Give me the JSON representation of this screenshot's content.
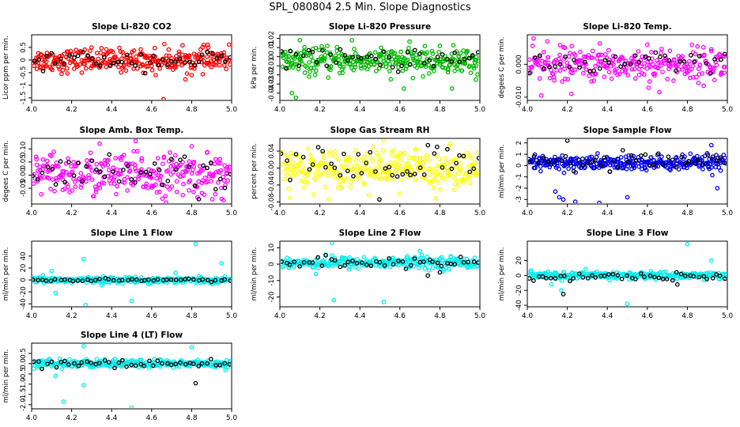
{
  "figure": {
    "title": "SPL_080804  2.5 Min. Slope Diagnostics"
  },
  "chart_data": [
    {
      "type": "scatter",
      "title": "Slope Li-820 CO2",
      "ylabel": "Licor ppm per min.",
      "xlim": [
        4.0,
        5.0
      ],
      "ylim": [
        -1.6,
        1.0
      ],
      "xticks": [
        4.0,
        4.2,
        4.4,
        4.6,
        4.8,
        5.0
      ],
      "xtick_labels": [
        "4.0",
        "4.2",
        "4.4",
        "4.6",
        "4.8",
        "5.0"
      ],
      "yticks": [
        -1.5,
        -1.0,
        -0.5,
        0.0,
        0.5
      ],
      "ytick_labels": [
        "-1.5",
        "-1",
        "-0.5",
        "0",
        "0.5"
      ],
      "series": [
        {
          "color": "#ff0000",
          "n": 300,
          "center": 0.0,
          "spread": 0.22,
          "outliers": [
            [
              4.66,
              -1.55
            ],
            [
              4.62,
              -0.6
            ],
            [
              4.3,
              0.5
            ],
            [
              4.15,
              -0.55
            ],
            [
              4.8,
              -0.6
            ],
            [
              4.88,
              0.6
            ]
          ]
        },
        {
          "color": "#000000",
          "n": 45,
          "center": 0.0,
          "spread": 0.18,
          "outliers": []
        }
      ]
    },
    {
      "type": "scatter",
      "title": "Slope Li-820 Pressure",
      "ylabel": "kPa per min.",
      "xlim": [
        4.0,
        5.0
      ],
      "ylim": [
        -0.048,
        0.024
      ],
      "xticks": [
        4.0,
        4.2,
        4.4,
        4.6,
        4.8,
        5.0
      ],
      "xtick_labels": [
        "4.0",
        "4.2",
        "4.4",
        "4.6",
        "4.8",
        "5.0"
      ],
      "yticks": [
        -0.04,
        -0.03,
        -0.02,
        -0.01,
        0.0,
        0.01,
        0.02
      ],
      "ytick_labels": [
        "-0.04",
        "-0.03",
        "-0.02",
        "-0.01",
        "0",
        "0.01",
        "0.02"
      ],
      "series": [
        {
          "color": "#00bb00",
          "n": 320,
          "center": -0.005,
          "spread": 0.007,
          "outliers": [
            [
              4.08,
              -0.045
            ],
            [
              4.06,
              -0.04
            ],
            [
              4.62,
              -0.035
            ],
            [
              4.86,
              -0.035
            ],
            [
              4.98,
              -0.025
            ],
            [
              4.36,
              0.018
            ],
            [
              4.1,
              0.018
            ]
          ]
        },
        {
          "color": "#000000",
          "n": 45,
          "center": -0.002,
          "spread": 0.006,
          "outliers": []
        }
      ]
    },
    {
      "type": "scatter",
      "title": "Slope Li-820 Temp.",
      "ylabel": "degees C per min.",
      "xlim": [
        4.0,
        5.0
      ],
      "ylim": [
        -0.011,
        0.009
      ],
      "xticks": [
        4.0,
        4.2,
        4.4,
        4.6,
        4.8,
        5.0
      ],
      "xtick_labels": [
        "4.0",
        "4.2",
        "4.4",
        "4.6",
        "4.8",
        "5.0"
      ],
      "yticks": [
        -0.01,
        0.0
      ],
      "ytick_labels": [
        "-0.010",
        "0.000"
      ],
      "series": [
        {
          "color": "#ff00ff",
          "n": 280,
          "center": 0.0,
          "spread": 0.0025,
          "outliers": [
            [
              4.07,
              -0.0095
            ],
            [
              4.22,
              -0.009
            ],
            [
              4.66,
              -0.0085
            ],
            [
              4.1,
              0.007
            ],
            [
              4.6,
              0.006
            ],
            [
              4.92,
              0.004
            ]
          ]
        },
        {
          "color": "#000000",
          "n": 40,
          "center": 0.0,
          "spread": 0.002,
          "outliers": []
        }
      ]
    },
    {
      "type": "scatter",
      "title": "Slope Amb. Box Temp.",
      "ylabel": "degees C per min.",
      "xlim": [
        4.0,
        5.0
      ],
      "ylim": [
        -0.11,
        0.14
      ],
      "xticks": [
        4.0,
        4.2,
        4.4,
        4.6,
        4.8,
        5.0
      ],
      "xtick_labels": [
        "4.0",
        "4.2",
        "4.4",
        "4.6",
        "4.8",
        "5.0"
      ],
      "yticks": [
        -0.05,
        0.0,
        0.05,
        0.1
      ],
      "ytick_labels": [
        "-0.05",
        "0.00",
        "0.05",
        "0.10"
      ],
      "series": [
        {
          "color": "#ff00ff",
          "n": 300,
          "center": 0.0,
          "spread": 0.04,
          "outliers": [
            [
              4.52,
              0.13
            ],
            [
              4.34,
              0.12
            ],
            [
              4.8,
              0.11
            ],
            [
              4.95,
              -0.09
            ]
          ]
        },
        {
          "color": "#000000",
          "n": 45,
          "center": 0.0,
          "spread": 0.035,
          "outliers": []
        }
      ]
    },
    {
      "type": "scatter",
      "title": "Slope Gas Stream RH",
      "ylabel": "percent per min.",
      "xlim": [
        4.0,
        5.0
      ],
      "ylim": [
        -0.085,
        0.07
      ],
      "xticks": [
        4.0,
        4.2,
        4.4,
        4.6,
        4.8,
        5.0
      ],
      "xtick_labels": [
        "4.0",
        "4.2",
        "4.4",
        "4.6",
        "4.8",
        "5.0"
      ],
      "yticks": [
        -0.08,
        -0.04,
        0.0,
        0.04
      ],
      "ytick_labels": [
        "-0.08",
        "-0.04",
        "0.00",
        "0.04"
      ],
      "series": [
        {
          "color": "#ffff00",
          "n": 300,
          "center": 0.0,
          "spread": 0.022,
          "outliers": [
            [
              4.52,
              0.065
            ],
            [
              4.05,
              -0.07
            ],
            [
              4.78,
              -0.072
            ],
            [
              4.6,
              -0.06
            ]
          ]
        },
        {
          "color": "#000000",
          "n": 45,
          "center": 0.0,
          "spread": 0.03,
          "outliers": []
        }
      ]
    },
    {
      "type": "scatter",
      "title": "Slope Sample Flow",
      "ylabel": "ml/min per min.",
      "xlim": [
        4.0,
        5.0
      ],
      "ylim": [
        -3.4,
        2.4
      ],
      "xticks": [
        4.0,
        4.2,
        4.4,
        4.6,
        4.8,
        5.0
      ],
      "xtick_labels": [
        "4.0",
        "4.2",
        "4.4",
        "4.6",
        "4.8",
        "5.0"
      ],
      "yticks": [
        -3,
        -2,
        -1,
        0,
        1,
        2
      ],
      "ytick_labels": [
        "-3",
        "-2",
        "-1",
        "0",
        "1",
        "2"
      ],
      "series": [
        {
          "color": "#0000ee",
          "n": 320,
          "center": 0.2,
          "spread": 0.35,
          "outliers": [
            [
              4.16,
              -2.8
            ],
            [
              4.18,
              -3.0
            ],
            [
              4.24,
              -3.2
            ],
            [
              4.36,
              -3.3
            ],
            [
              4.5,
              -2.8
            ],
            [
              4.14,
              -2.3
            ],
            [
              4.95,
              -2.0
            ],
            [
              4.92,
              1.8
            ]
          ]
        },
        {
          "color": "#000000",
          "n": 45,
          "center": 0.3,
          "spread": 0.4,
          "outliers": [
            [
              4.2,
              2.2
            ]
          ]
        }
      ]
    },
    {
      "type": "scatter",
      "title": "Slope Line 1 Flow",
      "ylabel": "ml/min per min.",
      "xlim": [
        4.0,
        5.0
      ],
      "ylim": [
        -45,
        65
      ],
      "xticks": [
        4.0,
        4.2,
        4.4,
        4.6,
        4.8,
        5.0
      ],
      "xtick_labels": [
        "4.0",
        "4.2",
        "4.4",
        "4.6",
        "4.8",
        "5.0"
      ],
      "yticks": [
        -40,
        -20,
        0,
        20,
        40
      ],
      "ytick_labels": [
        "-40",
        "-20",
        "0",
        "20",
        "40"
      ],
      "series": [
        {
          "color": "#00eeee",
          "n": 280,
          "center": 0.0,
          "spread": 2.5,
          "outliers": [
            [
              4.26,
              35
            ],
            [
              4.82,
              60
            ],
            [
              4.95,
              28
            ],
            [
              4.27,
              -42
            ],
            [
              4.5,
              -35
            ],
            [
              4.12,
              -22
            ],
            [
              4.1,
              15
            ],
            [
              4.72,
              12
            ]
          ]
        },
        {
          "color": "#000000",
          "n": 45,
          "center": 0.0,
          "spread": 1.0,
          "outliers": []
        }
      ]
    },
    {
      "type": "scatter",
      "title": "Slope Line 2 Flow",
      "ylabel": "ml/min per min.",
      "xlim": [
        4.0,
        5.0
      ],
      "ylim": [
        -26,
        14
      ],
      "xticks": [
        4.0,
        4.2,
        4.4,
        4.6,
        4.8,
        5.0
      ],
      "xtick_labels": [
        "4.0",
        "4.2",
        "4.4",
        "4.6",
        "4.8",
        "5.0"
      ],
      "yticks": [
        -20,
        -10,
        0,
        10
      ],
      "ytick_labels": [
        "-20",
        "-10",
        "0",
        "10"
      ],
      "series": [
        {
          "color": "#00eeee",
          "n": 280,
          "center": 1.0,
          "spread": 1.8,
          "outliers": [
            [
              4.26,
              13
            ],
            [
              4.52,
              -23
            ],
            [
              4.27,
              -22
            ],
            [
              4.7,
              8
            ],
            [
              4.18,
              -6
            ]
          ]
        },
        {
          "color": "#000000",
          "n": 45,
          "center": 1.0,
          "spread": 1.8,
          "outliers": [
            [
              4.74,
              -7
            ],
            [
              4.8,
              -5
            ]
          ]
        }
      ]
    },
    {
      "type": "scatter",
      "title": "Slope Line 3 Flow",
      "ylabel": "ml/min per min.",
      "xlim": [
        4.0,
        5.0
      ],
      "ylim": [
        -42,
        46
      ],
      "xticks": [
        4.0,
        4.2,
        4.4,
        4.6,
        4.8,
        5.0
      ],
      "xtick_labels": [
        "4.0",
        "4.2",
        "4.4",
        "4.6",
        "4.8",
        "5.0"
      ],
      "yticks": [
        -40,
        -20,
        0,
        20
      ],
      "ytick_labels": [
        "-40",
        "-20",
        "0",
        "20"
      ],
      "series": [
        {
          "color": "#00eeee",
          "n": 280,
          "center": 0.0,
          "spread": 2.5,
          "outliers": [
            [
              4.8,
              42
            ],
            [
              4.92,
              20
            ],
            [
              4.5,
              -38
            ],
            [
              4.17,
              -20
            ],
            [
              4.12,
              -12
            ]
          ]
        },
        {
          "color": "#000000",
          "n": 45,
          "center": -2.0,
          "spread": 2.5,
          "outliers": [
            [
              4.18,
              -25
            ],
            [
              4.75,
              -12
            ]
          ]
        }
      ]
    },
    {
      "type": "scatter",
      "title": "Slope Line 4 (LT) Flow",
      "ylabel": "ml/min per min.",
      "xlim": [
        4.0,
        5.0
      ],
      "ylim": [
        -2.2,
        1.0
      ],
      "xticks": [
        4.0,
        4.2,
        4.4,
        4.6,
        4.8,
        5.0
      ],
      "xtick_labels": [
        "4.0",
        "4.2",
        "4.4",
        "4.6",
        "4.8",
        "5.0"
      ],
      "yticks": [
        -2.0,
        -1.5,
        -1.0,
        -0.5,
        0.0,
        0.5
      ],
      "ytick_labels": [
        "-2.0",
        "-1.5",
        "-1.0",
        "-0.5",
        "0.0",
        "0.5"
      ],
      "series": [
        {
          "color": "#00eeee",
          "n": 280,
          "center": 0.0,
          "spread": 0.1,
          "outliers": [
            [
              4.16,
              -1.85
            ],
            [
              4.5,
              -2.15
            ],
            [
              4.26,
              0.85
            ],
            [
              4.8,
              0.8
            ],
            [
              4.12,
              -0.6
            ],
            [
              4.26,
              -1.05
            ]
          ]
        },
        {
          "color": "#000000",
          "n": 45,
          "center": 0.0,
          "spread": 0.1,
          "outliers": [
            [
              4.82,
              -0.95
            ]
          ]
        }
      ]
    }
  ]
}
